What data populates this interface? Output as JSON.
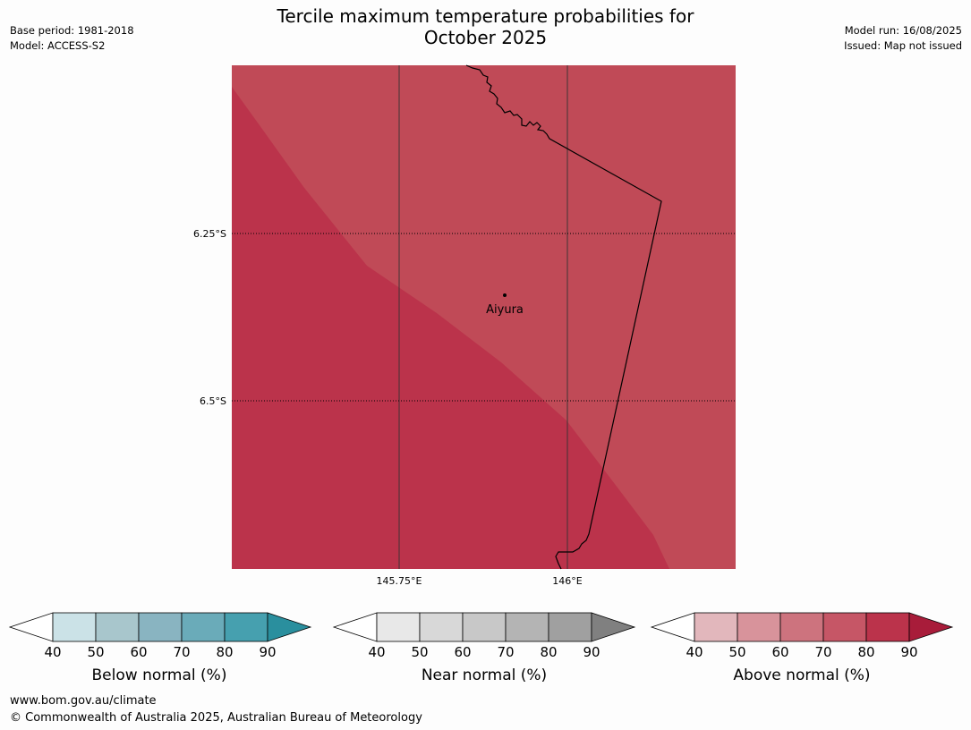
{
  "header": {
    "title_line1": "Tercile maximum temperature probabilities for",
    "title_line2": "October 2025",
    "base_period": "Base period: 1981-2018",
    "model": "Model: ACCESS-S2",
    "model_run": "Model run: 16/08/2025",
    "issued": "Issued: Map not issued"
  },
  "map": {
    "lat_labels": [
      "6.25°S",
      "6.5°S"
    ],
    "lon_labels": [
      "145.75°E",
      "146°E"
    ],
    "place": {
      "name": "Aiyura"
    },
    "colors": {
      "above_70_80": "#c04a57",
      "above_80_90": "#bb334b",
      "coastline": "#000000"
    }
  },
  "colorbars": [
    {
      "label": "Below normal (%)",
      "ticks": [
        "40",
        "50",
        "60",
        "70",
        "80",
        "90"
      ],
      "colors": [
        "#ffffff",
        "#cbe2e7",
        "#a8c6cc",
        "#89b4c1",
        "#6aabb9",
        "#46a0af",
        "#2a8f9e"
      ]
    },
    {
      "label": "Near normal (%)",
      "ticks": [
        "40",
        "50",
        "60",
        "70",
        "80",
        "90"
      ],
      "colors": [
        "#ffffff",
        "#e8e8e8",
        "#d8d8d8",
        "#c8c8c8",
        "#b4b4b4",
        "#a0a0a0",
        "#808080"
      ]
    },
    {
      "label": "Above normal (%)",
      "ticks": [
        "40",
        "50",
        "60",
        "70",
        "80",
        "90"
      ],
      "colors": [
        "#ffffff",
        "#e2b7bc",
        "#d8939b",
        "#cd737e",
        "#c65666",
        "#bb334b",
        "#a81c3a"
      ]
    }
  ],
  "footer": {
    "url": "www.bom.gov.au/climate",
    "copyright": "© Commonwealth of Australia 2025, Australian Bureau of Meteorology"
  }
}
